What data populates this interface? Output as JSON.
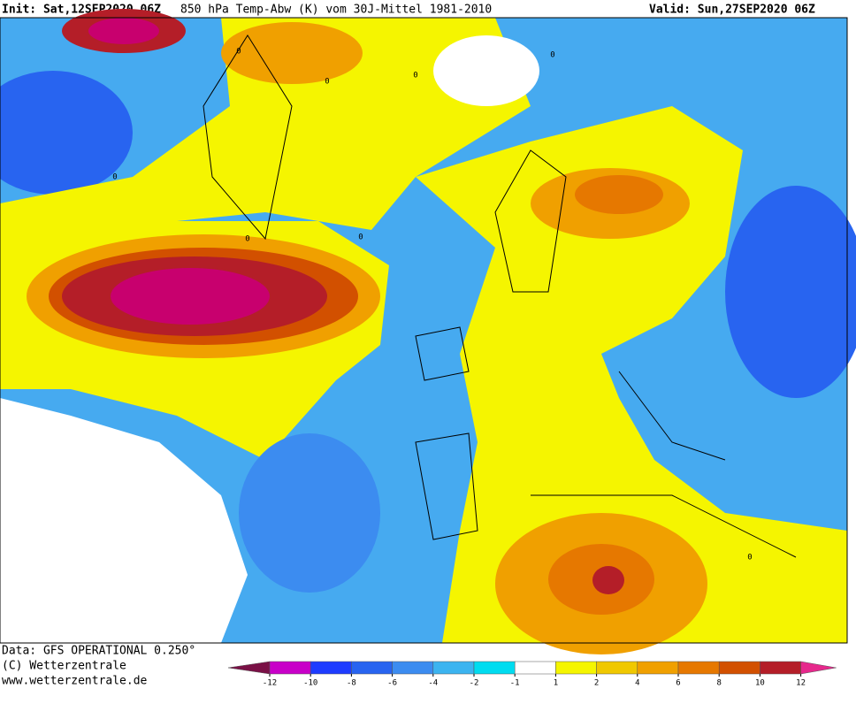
{
  "header": {
    "init": "Init: Sat,12SEP2020 06Z",
    "title": "850 hPa Temp-Abw (K) vom 30J-Mittel 1981-2010",
    "valid": "Valid: Sun,27SEP2020 06Z"
  },
  "footer": {
    "data": "Data: GFS OPERATIONAL 0.250°",
    "copyright": "(C) Wetterzentrale",
    "url": "www.wetterzentrale.de"
  },
  "colorbar": {
    "ticks": [
      -12,
      -10,
      -8,
      -6,
      -4,
      -2,
      -1,
      1,
      2,
      4,
      6,
      8,
      10,
      12
    ],
    "colors": [
      "#7a1046",
      "#c800c8",
      "#1e3cff",
      "#2864f0",
      "#3c8cf0",
      "#3cb4f0",
      "#00dcf0",
      "#ffffff",
      "#f5f500",
      "#f0c800",
      "#f0a000",
      "#e67800",
      "#d25000",
      "#b41e28",
      "#e6288c"
    ]
  },
  "contour_labels": [
    "0",
    "0",
    "0",
    "0",
    "0",
    "0",
    "0",
    "0"
  ]
}
